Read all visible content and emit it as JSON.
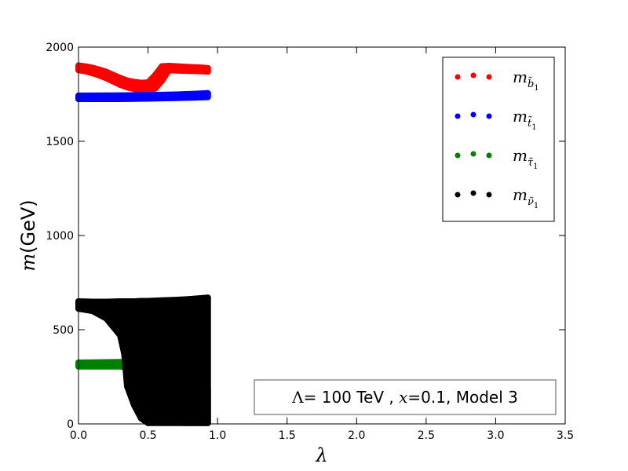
{
  "chart_data": {
    "type": "scatter",
    "title": "",
    "xlabel": "λ",
    "ylabel": "m(GeV)",
    "xlim": [
      0.0,
      3.5
    ],
    "ylim": [
      0,
      2000
    ],
    "xticks": [
      "0.0",
      "0.5",
      "1.0",
      "1.5",
      "2.0",
      "2.5",
      "3.0",
      "3.5"
    ],
    "yticks": [
      "0",
      "500",
      "1000",
      "1500",
      "2000"
    ],
    "grid": false,
    "legend_position": "top-right",
    "annotation": "Λ= 100 TeV , x=0.1, Model 3",
    "series": [
      {
        "name": "m_b̃1",
        "color": "#ff0000",
        "bands": [
          {
            "x": 0.0,
            "low": 1878,
            "high": 1902
          },
          {
            "x": 0.05,
            "low": 1872,
            "high": 1897
          },
          {
            "x": 0.1,
            "low": 1862,
            "high": 1890
          },
          {
            "x": 0.15,
            "low": 1850,
            "high": 1880
          },
          {
            "x": 0.2,
            "low": 1835,
            "high": 1868
          },
          {
            "x": 0.25,
            "low": 1818,
            "high": 1852
          },
          {
            "x": 0.3,
            "low": 1800,
            "high": 1836
          },
          {
            "x": 0.35,
            "low": 1787,
            "high": 1822
          },
          {
            "x": 0.4,
            "low": 1778,
            "high": 1815
          },
          {
            "x": 0.45,
            "low": 1772,
            "high": 1810
          },
          {
            "x": 0.5,
            "low": 1770,
            "high": 1812
          },
          {
            "x": 0.55,
            "low": 1780,
            "high": 1850
          },
          {
            "x": 0.6,
            "low": 1822,
            "high": 1898
          },
          {
            "x": 0.65,
            "low": 1878,
            "high": 1900
          },
          {
            "x": 0.7,
            "low": 1876,
            "high": 1898
          },
          {
            "x": 0.8,
            "low": 1874,
            "high": 1894
          },
          {
            "x": 0.9,
            "low": 1872,
            "high": 1890
          },
          {
            "x": 0.93,
            "low": 1870,
            "high": 1888
          }
        ]
      },
      {
        "name": "m_t̃1",
        "color": "#0000ff",
        "bands": [
          {
            "x": 0.0,
            "low": 1725,
            "high": 1742
          },
          {
            "x": 0.3,
            "low": 1725,
            "high": 1743
          },
          {
            "x": 0.5,
            "low": 1727,
            "high": 1745
          },
          {
            "x": 0.7,
            "low": 1730,
            "high": 1748
          },
          {
            "x": 0.85,
            "low": 1733,
            "high": 1752
          },
          {
            "x": 0.93,
            "low": 1735,
            "high": 1755
          }
        ]
      },
      {
        "name": "m_τ̃1",
        "color": "#008000",
        "bands": [
          {
            "x": 0.0,
            "low": 305,
            "high": 325
          },
          {
            "x": 0.3,
            "low": 305,
            "high": 328
          },
          {
            "x": 0.35,
            "low": 300,
            "high": 328
          },
          {
            "x": 0.6,
            "low": 10,
            "high": 240
          },
          {
            "x": 0.75,
            "low": 5,
            "high": 220
          },
          {
            "x": 0.93,
            "low": 5,
            "high": 180
          }
        ]
      },
      {
        "name": "m_ν̃1",
        "color": "#000000",
        "bands": [
          {
            "x": 0.0,
            "low": 612,
            "high": 650
          },
          {
            "x": 0.1,
            "low": 600,
            "high": 648
          },
          {
            "x": 0.2,
            "low": 560,
            "high": 648
          },
          {
            "x": 0.3,
            "low": 470,
            "high": 650
          },
          {
            "x": 0.33,
            "low": 370,
            "high": 650
          },
          {
            "x": 0.35,
            "low": 200,
            "high": 650
          },
          {
            "x": 0.4,
            "low": 100,
            "high": 650
          },
          {
            "x": 0.45,
            "low": 30,
            "high": 652
          },
          {
            "x": 0.5,
            "low": 5,
            "high": 652
          },
          {
            "x": 0.6,
            "low": 5,
            "high": 655
          },
          {
            "x": 0.7,
            "low": 5,
            "high": 658
          },
          {
            "x": 0.8,
            "low": 5,
            "high": 662
          },
          {
            "x": 0.9,
            "low": 5,
            "high": 668
          },
          {
            "x": 0.93,
            "low": 5,
            "high": 670
          }
        ]
      }
    ]
  },
  "legend": {
    "items": [
      {
        "base": "m",
        "sub": "b̃",
        "subsub": "1",
        "color": "#ff0000"
      },
      {
        "base": "m",
        "sub": "t̃",
        "subsub": "1",
        "color": "#0000ff"
      },
      {
        "base": "m",
        "sub": "τ̃",
        "subsub": "1",
        "color": "#008000"
      },
      {
        "base": "m",
        "sub": "ν̃",
        "subsub": "1",
        "color": "#000000"
      }
    ]
  },
  "annotation": {
    "lambda_sym": "Λ",
    "part1": "= 100 TeV , ",
    "x_sym": "x",
    "part2": "=0.1, Model 3"
  },
  "axes": {
    "xlabel": "λ",
    "ylabel_m": "m",
    "ylabel_unit": "(GeV)"
  }
}
